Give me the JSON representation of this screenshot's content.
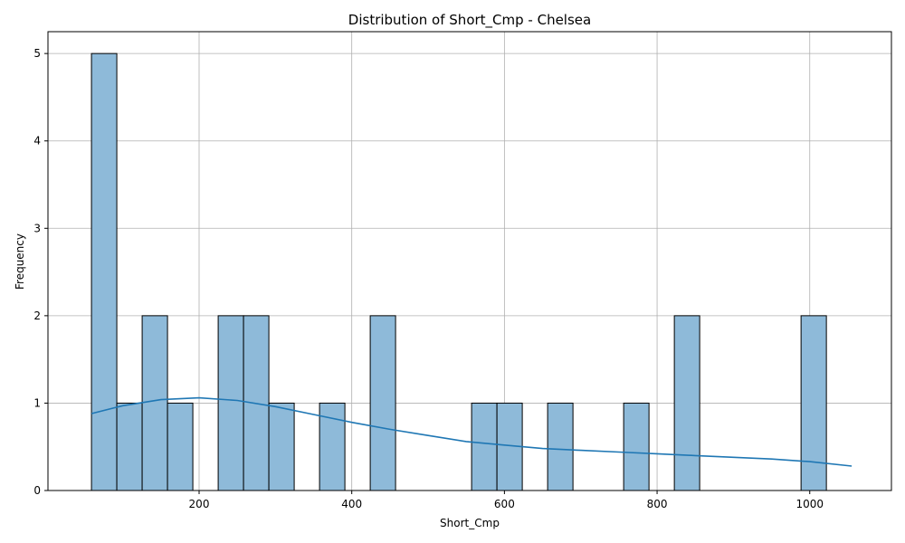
{
  "chart_data": {
    "type": "bar",
    "title": "Distribution of Short_Cmp - Chelsea",
    "xlabel": "Short_Cmp",
    "ylabel": "Frequency",
    "xlim": [
      2,
      1107
    ],
    "ylim": [
      0,
      5.25
    ],
    "xticks": [
      200,
      400,
      600,
      800,
      1000
    ],
    "yticks": [
      0,
      1,
      2,
      3,
      4,
      5
    ],
    "grid": true,
    "bin_start": 59,
    "bin_width": 33.2,
    "bin_counts": [
      5,
      1,
      2,
      1,
      0,
      2,
      2,
      1,
      0,
      1,
      0,
      2,
      0,
      0,
      0,
      1,
      1,
      0,
      1,
      0,
      0,
      1,
      0,
      2,
      0,
      0,
      0,
      0,
      2
    ],
    "bar_color": "#8ebad9",
    "kde_color": "#1f77b4",
    "kde": {
      "x": [
        59,
        100,
        150,
        200,
        250,
        300,
        350,
        400,
        450,
        500,
        550,
        600,
        650,
        700,
        750,
        800,
        850,
        900,
        950,
        1000,
        1055
      ],
      "y": [
        0.88,
        0.97,
        1.04,
        1.06,
        1.03,
        0.96,
        0.87,
        0.78,
        0.7,
        0.63,
        0.56,
        0.52,
        0.48,
        0.46,
        0.44,
        0.42,
        0.4,
        0.38,
        0.36,
        0.33,
        0.28
      ]
    }
  }
}
